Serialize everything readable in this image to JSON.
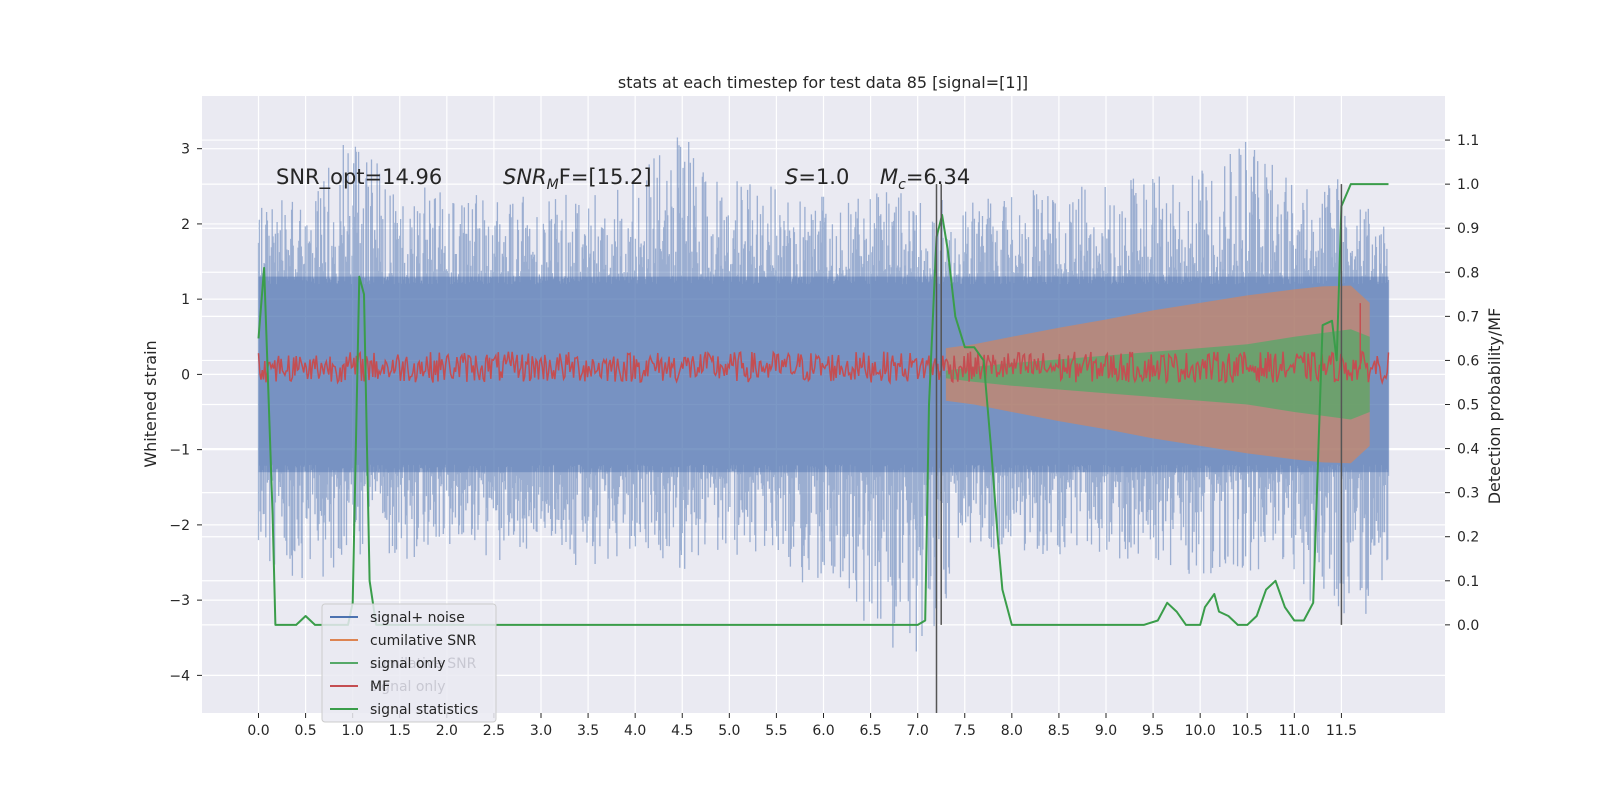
{
  "chart_data": {
    "type": "line",
    "title": "stats at each timestep for test data 85 [signal=[1]]",
    "xlabel": "",
    "ylabel_left": "Whitened strain",
    "ylabel_right": "Detection probability/MF",
    "xlim": [
      -0.6,
      12.6
    ],
    "ylim_left": [
      -4.5,
      3.7
    ],
    "ylim_right": [
      -0.2,
      1.2
    ],
    "x_ticks": [
      0.0,
      0.5,
      1.0,
      1.5,
      2.0,
      2.5,
      3.0,
      3.5,
      4.0,
      4.5,
      5.0,
      5.5,
      6.0,
      6.5,
      7.0,
      7.5,
      8.0,
      8.5,
      9.0,
      9.5,
      10.0,
      10.5,
      11.0,
      11.5
    ],
    "x_tick_labels": [
      "0.0",
      "0.5",
      "1.0",
      "1.5",
      "2.0",
      "2.5",
      "3.0",
      "3.5",
      "4.0",
      "4.5",
      "5.0",
      "5.5",
      "6.0",
      "6.5",
      "7.0",
      "7.5",
      "8.0",
      "8.5",
      "9.0",
      "9.5",
      "10.0",
      "10.5",
      "11.0",
      "11.5"
    ],
    "y_ticks_left": [
      -4,
      -3,
      -2,
      -1,
      0,
      1,
      2,
      3
    ],
    "y_tick_labels_left": [
      "−4",
      "−3",
      "−2",
      "−1",
      "0",
      "1",
      "2",
      "3"
    ],
    "y_ticks_right": [
      0.0,
      0.1,
      0.2,
      0.3,
      0.4,
      0.5,
      0.6,
      0.7,
      0.8,
      0.9,
      1.0,
      1.1
    ],
    "y_tick_labels_right": [
      "0.0",
      "0.1",
      "0.2",
      "0.3",
      "0.4",
      "0.5",
      "0.6",
      "0.7",
      "0.8",
      "0.9",
      "1.0",
      "1.1"
    ],
    "grid": true,
    "legend_position": "lower-left",
    "annotations": {
      "snr_opt": "SNR_opt=14.96",
      "snr_mf_base": "SNR",
      "snr_mf_sub": "M",
      "snr_mf_rest": "F=[15.2]",
      "s_italic": "S",
      "s_rest": "=1.0",
      "mc_base": "M",
      "mc_sub": "c",
      "mc_rest": "=6.34"
    },
    "legend_entries": [
      {
        "label": "signal+ noise",
        "color": "#4c72b0"
      },
      {
        "label": "cumilative SNR",
        "color": "#dd8452"
      },
      {
        "label": "signal only",
        "color": "#55a868"
      },
      {
        "label": "MF",
        "color": "#c44e52"
      },
      {
        "label": "signal statistics",
        "color": "#3a9d4a"
      }
    ],
    "legend_ghost_entries": [
      "cumilative SNR",
      "signal only"
    ],
    "series": [
      {
        "name": "signal+ noise",
        "axis": "left",
        "color": "#4c72b0",
        "x_range": [
          0.0,
          12.0
        ],
        "sampled_envelope": {
          "x": [
            0.0,
            0.5,
            1.0,
            1.5,
            2.0,
            2.5,
            3.0,
            3.5,
            4.0,
            4.5,
            5.0,
            5.5,
            6.0,
            6.5,
            7.0,
            7.5,
            8.0,
            8.5,
            9.0,
            9.5,
            10.0,
            10.5,
            11.0,
            11.5,
            12.0
          ],
          "upper": [
            2.3,
            2.4,
            3.3,
            2.4,
            2.6,
            2.3,
            2.5,
            2.6,
            2.7,
            3.2,
            2.6,
            2.5,
            2.4,
            2.4,
            2.5,
            2.3,
            2.5,
            2.4,
            2.6,
            2.7,
            2.7,
            3.3,
            2.7,
            2.6,
            2.0
          ],
          "lower": [
            -2.4,
            -2.8,
            -2.5,
            -2.6,
            -2.3,
            -2.5,
            -2.4,
            -2.6,
            -2.3,
            -2.6,
            -2.4,
            -2.5,
            -3.0,
            -3.4,
            -3.9,
            -2.4,
            -2.3,
            -2.5,
            -2.4,
            -2.6,
            -2.7,
            -2.6,
            -2.8,
            -3.5,
            -2.9
          ]
        }
      },
      {
        "name": "cumilative SNR",
        "axis": "left",
        "color": "#dd8452",
        "x": [
          7.3,
          7.6,
          8.0,
          8.5,
          9.0,
          9.5,
          10.0,
          10.5,
          11.0,
          11.3,
          11.6,
          11.8
        ],
        "upper": [
          0.35,
          0.4,
          0.5,
          0.62,
          0.73,
          0.85,
          0.95,
          1.05,
          1.13,
          1.17,
          1.18,
          0.95
        ],
        "lower": [
          -0.35,
          -0.4,
          -0.5,
          -0.62,
          -0.73,
          -0.85,
          -0.95,
          -1.05,
          -1.13,
          -1.17,
          -1.18,
          -0.95
        ]
      },
      {
        "name": "signal only",
        "axis": "left",
        "color": "#55a868",
        "x": [
          7.3,
          7.6,
          8.0,
          8.5,
          9.0,
          9.5,
          10.0,
          10.5,
          11.0,
          11.3,
          11.6,
          11.8
        ],
        "upper": [
          0.05,
          0.1,
          0.15,
          0.2,
          0.25,
          0.3,
          0.35,
          0.4,
          0.5,
          0.55,
          0.6,
          0.5
        ],
        "lower": [
          -0.05,
          -0.1,
          -0.15,
          -0.2,
          -0.25,
          -0.3,
          -0.35,
          -0.4,
          -0.5,
          -0.55,
          -0.6,
          -0.5
        ]
      },
      {
        "name": "MF",
        "axis": "right",
        "color": "#c44e52",
        "x_range": [
          0.0,
          12.0
        ],
        "level": 0.58,
        "band": [
          0.55,
          0.62
        ],
        "spike": {
          "x": 11.7,
          "y": 0.73
        }
      },
      {
        "name": "signal statistics",
        "axis": "right",
        "color": "#3a9d4a",
        "x": [
          0.0,
          0.06,
          0.15,
          0.18,
          0.2,
          0.3,
          0.4,
          0.5,
          0.6,
          0.7,
          0.8,
          0.9,
          0.95,
          1.0,
          1.07,
          1.12,
          1.18,
          1.25,
          1.3,
          1.5,
          2.0,
          3.0,
          4.0,
          5.0,
          6.0,
          7.0,
          7.08,
          7.12,
          7.2,
          7.26,
          7.32,
          7.4,
          7.5,
          7.6,
          7.7,
          7.78,
          7.85,
          7.9,
          8.0,
          8.5,
          9.0,
          9.2,
          9.4,
          9.55,
          9.65,
          9.75,
          9.85,
          9.95,
          10.0,
          10.05,
          10.15,
          10.2,
          10.3,
          10.4,
          10.5,
          10.6,
          10.7,
          10.8,
          10.9,
          11.0,
          11.1,
          11.2,
          11.3,
          11.4,
          11.45,
          11.5,
          11.6,
          11.7,
          12.0
        ],
        "y": [
          0.65,
          0.81,
          0.25,
          0.0,
          0.0,
          0.0,
          0.0,
          0.02,
          0.0,
          0.0,
          0.0,
          0.0,
          0.0,
          0.05,
          0.79,
          0.75,
          0.1,
          0.0,
          0.0,
          0.0,
          0.0,
          0.0,
          0.0,
          0.0,
          0.0,
          0.0,
          0.01,
          0.5,
          0.88,
          0.93,
          0.85,
          0.7,
          0.63,
          0.63,
          0.6,
          0.4,
          0.2,
          0.08,
          0.0,
          0.0,
          0.0,
          0.0,
          0.0,
          0.01,
          0.05,
          0.03,
          0.0,
          0.0,
          0.0,
          0.04,
          0.07,
          0.03,
          0.02,
          0.0,
          0.0,
          0.02,
          0.08,
          0.1,
          0.04,
          0.01,
          0.01,
          0.05,
          0.68,
          0.69,
          0.6,
          0.95,
          1.0,
          1.0,
          1.0
        ]
      }
    ],
    "vertical_lines": [
      {
        "x": 7.2,
        "ymin": -0.2,
        "ymax": 1.0
      },
      {
        "x": 7.25,
        "ymin": 0.0,
        "ymax": 1.0
      },
      {
        "x": 11.5,
        "ymin": 0.0,
        "ymax": 1.0
      }
    ],
    "colors": {
      "plot_background": "#eaeaf2",
      "grid": "#ffffff",
      "text": "#262626",
      "legend_background": "#eaeaf2"
    }
  }
}
